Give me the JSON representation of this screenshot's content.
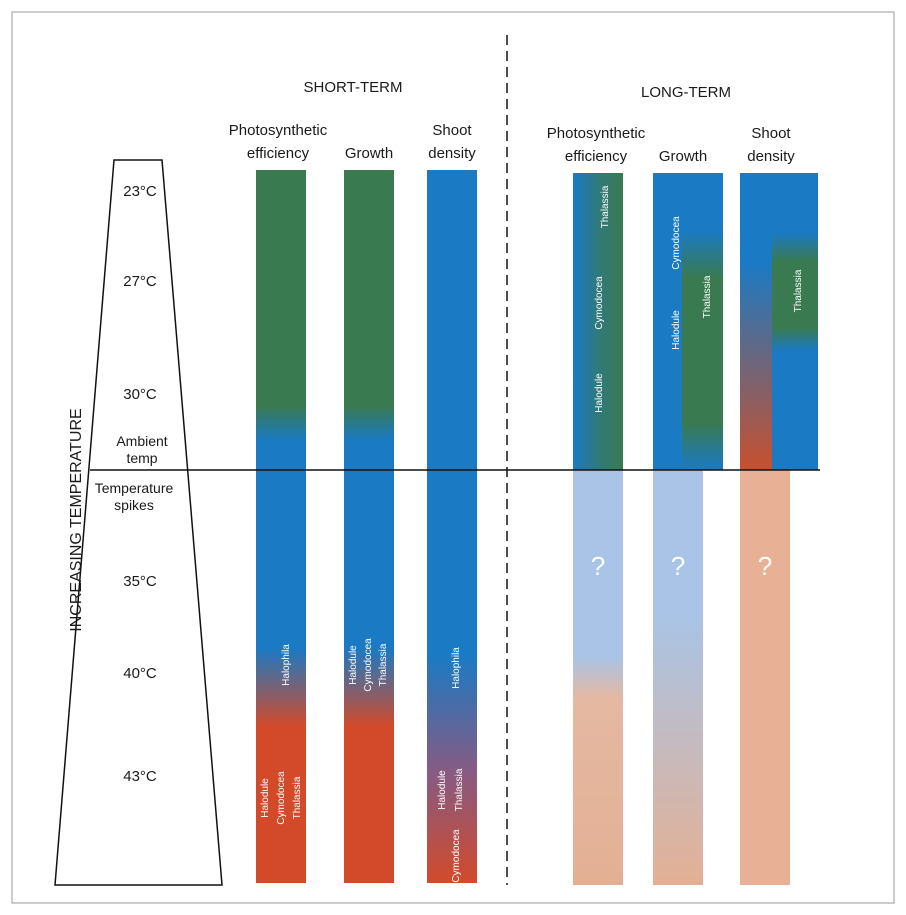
{
  "headers": {
    "short_term": "SHORT-TERM",
    "long_term": "LONG-TERM"
  },
  "axis_label": "INCREASING TEMPERATURE",
  "short_columns": [
    {
      "lines": [
        "Photosynthetic",
        "efficiency"
      ]
    },
    {
      "lines": [
        "Growth"
      ]
    },
    {
      "lines": [
        "Shoot",
        "density"
      ]
    }
  ],
  "long_columns": [
    {
      "lines": [
        "Photosynthetic",
        "efficiency"
      ]
    },
    {
      "lines": [
        "Growth"
      ]
    },
    {
      "lines": [
        "Shoot",
        "density"
      ]
    }
  ],
  "temperatures": {
    "t23": "23°C",
    "t27": "27°C",
    "t30": "30°C",
    "ambient": [
      "Ambient",
      "temp"
    ],
    "spikes": [
      "Temperature",
      "spikes"
    ],
    "t35": "35°C",
    "t40": "40°C",
    "t43": "43°C"
  },
  "species": {
    "short_pe": [
      "Halophila",
      "Halodule",
      "Cymodocea",
      "Thalassia"
    ],
    "short_growth": [
      "Halodule",
      "Cymodocea",
      "Thalassia"
    ],
    "short_shoot": [
      "Halophila",
      "Halodule",
      "Thalassia",
      "Cymodocea"
    ],
    "long_pe": [
      "Thalassia",
      "Cymodocea",
      "Halodule"
    ],
    "long_growth": [
      "Cymodocea",
      "Halodule",
      "Thalassia"
    ],
    "long_shoot": [
      "Thalassia"
    ]
  },
  "unknown": [
    "?",
    "?",
    "?"
  ]
}
